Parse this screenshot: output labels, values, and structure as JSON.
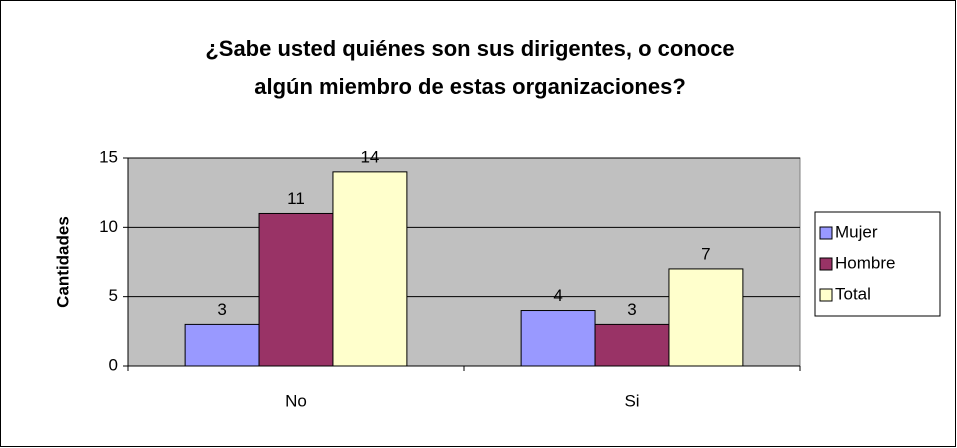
{
  "chart_data": {
    "type": "bar",
    "title": [
      "¿Sabe usted quiénes son sus dirigentes, o conoce",
      "algún miembro de estas organizaciones?"
    ],
    "y_label": "Cantidades",
    "categories": [
      "No",
      "Si"
    ],
    "series": [
      {
        "name": "Mujer",
        "color": "#9999ff",
        "values": [
          3,
          4
        ]
      },
      {
        "name": "Hombre",
        "color": "#993366",
        "values": [
          11,
          3
        ]
      },
      {
        "name": "Total",
        "color": "#ffffcc",
        "values": [
          14,
          7
        ]
      }
    ],
    "ylim": [
      0,
      15
    ],
    "yticks": [
      0,
      5,
      10,
      15
    ],
    "grid": true,
    "legend": "right"
  }
}
